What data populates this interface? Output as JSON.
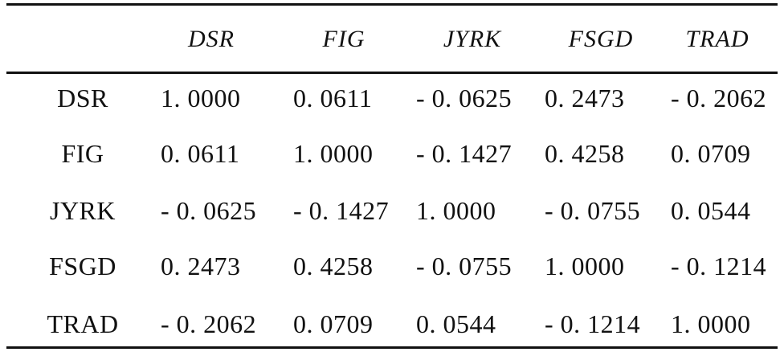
{
  "table": {
    "columns": [
      "",
      "DSR",
      "FIG",
      "JYRK",
      "FSGD",
      "TRAD"
    ],
    "rows": [
      {
        "label": "DSR",
        "values": [
          "1. 0000",
          "0. 0611",
          "- 0. 0625",
          "0. 2473",
          "- 0. 2062"
        ]
      },
      {
        "label": "FIG",
        "values": [
          "0. 0611",
          "1. 0000",
          "- 0. 1427",
          "0. 4258",
          "0. 0709"
        ]
      },
      {
        "label": "JYRK",
        "values": [
          "- 0. 0625",
          "- 0. 1427",
          "1. 0000",
          "- 0. 0755",
          "0. 0544"
        ]
      },
      {
        "label": "FSGD",
        "values": [
          "0. 2473",
          "0. 4258",
          "- 0. 0755",
          "1. 0000",
          "- 0. 1214"
        ]
      },
      {
        "label": "TRAD",
        "values": [
          "- 0. 2062",
          "0. 0709",
          "0. 0544",
          "- 0. 1214",
          "1. 0000"
        ]
      }
    ]
  }
}
